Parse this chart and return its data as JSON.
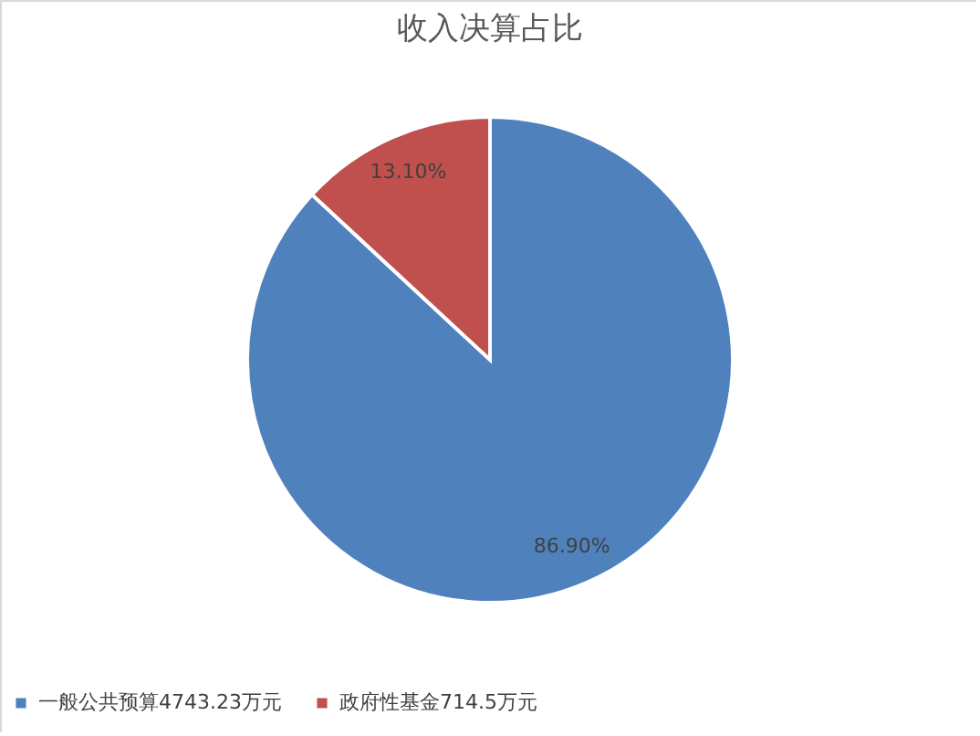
{
  "chart_data": {
    "type": "pie",
    "title": "收入决算占比",
    "categories": [
      "一般公共预算4743.23万元",
      "政府性基金714.5万元"
    ],
    "values": [
      86.9,
      13.1
    ],
    "value_labels": [
      "86.90%",
      "13.10%"
    ],
    "colors": [
      "#4f81bd",
      "#c0504d"
    ],
    "legend": "bottom"
  }
}
